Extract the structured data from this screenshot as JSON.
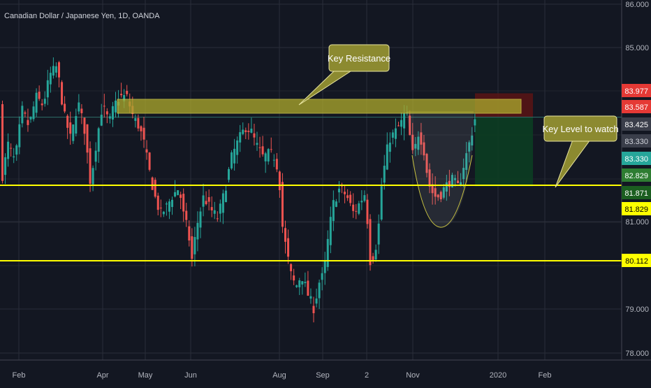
{
  "header": {
    "symbol_title": "Canadian Dollar / Japanese Yen, 1D, OANDA"
  },
  "colors": {
    "background": "#131722",
    "grid": "#2a2e39",
    "up": "#26a69a",
    "down": "#ef5350",
    "support_line": "#ffff00",
    "resistance_zone": "#a8a52c",
    "callout_fill": "#8c8a30",
    "stop_zone": "#5a1414",
    "target_zone": "#0c3d22",
    "axis_text": "#b2b5be"
  },
  "chart_data": {
    "type": "candlestick",
    "title": "Canadian Dollar / Japanese Yen, 1D, OANDA",
    "x_tick_labels": [
      "Feb",
      "Apr",
      "May",
      "Jun",
      "Aug",
      "Sep",
      "2",
      "Nov",
      "2020",
      "Feb"
    ],
    "y_tick_labels": [
      86.0,
      85.0,
      81.0,
      79.0,
      78.0
    ],
    "ylim": [
      77.95,
      86.05
    ],
    "grid": true,
    "price_points": [
      [
        0,
        81.9
      ],
      [
        10,
        82.8
      ],
      [
        20,
        82.4
      ],
      [
        30,
        83.6
      ],
      [
        40,
        83.2
      ],
      [
        50,
        83.9
      ],
      [
        60,
        83.7
      ],
      [
        70,
        84.4
      ],
      [
        80,
        84.6
      ],
      [
        90,
        83.5
      ],
      [
        100,
        82.9
      ],
      [
        110,
        83.8
      ],
      [
        120,
        83.1
      ],
      [
        128,
        81.9
      ],
      [
        135,
        82.7
      ],
      [
        145,
        83.7
      ],
      [
        155,
        83.3
      ],
      [
        162,
        83.7
      ],
      [
        170,
        83.9
      ],
      [
        180,
        83.9
      ],
      [
        190,
        83.4
      ],
      [
        198,
        83.2
      ],
      [
        205,
        82.8
      ],
      [
        212,
        82.2
      ],
      [
        220,
        81.6
      ],
      [
        228,
        81.2
      ],
      [
        235,
        81.3
      ],
      [
        245,
        81.6
      ],
      [
        255,
        81.8
      ],
      [
        262,
        81.1
      ],
      [
        268,
        80.8
      ],
      [
        273,
        80.1
      ],
      [
        280,
        80.9
      ],
      [
        290,
        81.6
      ],
      [
        300,
        81.3
      ],
      [
        310,
        81.1
      ],
      [
        320,
        81.7
      ],
      [
        330,
        82.5
      ],
      [
        340,
        82.9
      ],
      [
        350,
        83.2
      ],
      [
        358,
        83.1
      ],
      [
        365,
        82.8
      ],
      [
        375,
        82.5
      ],
      [
        385,
        82.6
      ],
      [
        392,
        82.5
      ],
      [
        398,
        82.1
      ],
      [
        402,
        81.0
      ],
      [
        408,
        80.4
      ],
      [
        415,
        79.8
      ],
      [
        422,
        79.5
      ],
      [
        430,
        79.8
      ],
      [
        440,
        79.3
      ],
      [
        448,
        79.0
      ],
      [
        455,
        79.6
      ],
      [
        462,
        79.8
      ],
      [
        468,
        80.6
      ],
      [
        475,
        81.4
      ],
      [
        485,
        81.8
      ],
      [
        495,
        81.6
      ],
      [
        505,
        81.2
      ],
      [
        515,
        81.5
      ],
      [
        522,
        81.7
      ],
      [
        528,
        80.1
      ],
      [
        535,
        80.3
      ],
      [
        540,
        80.8
      ],
      [
        545,
        81.9
      ],
      [
        555,
        82.9
      ],
      [
        565,
        83.1
      ],
      [
        573,
        83.3
      ],
      [
        580,
        83.58
      ],
      [
        585,
        83.0
      ],
      [
        590,
        82.5
      ],
      [
        598,
        83.1
      ],
      [
        605,
        82.7
      ],
      [
        612,
        81.9
      ],
      [
        620,
        81.6
      ],
      [
        628,
        81.6
      ],
      [
        635,
        81.8
      ],
      [
        645,
        82.0
      ],
      [
        655,
        81.8
      ],
      [
        662,
        82.3
      ],
      [
        670,
        82.8
      ],
      [
        676,
        83.2
      ],
      [
        681,
        83.6
      ]
    ],
    "resistance_zone": {
      "price_from": 83.45,
      "price_to": 83.58
    },
    "support_levels": [
      81.829,
      80.112
    ],
    "long_position": {
      "entry": 83.425,
      "stop": 83.977,
      "target": 81.829
    },
    "axis_badges": [
      {
        "text": "83.977",
        "bg": "#e53935",
        "fg": "#ffffff"
      },
      {
        "text": "83.587",
        "bg": "#e53935",
        "fg": "#ffffff"
      },
      {
        "text": "83.425",
        "bg": "#3a3e4a",
        "fg": "#ffffff"
      },
      {
        "text": "83.330",
        "bg": "#3a3e4a",
        "fg": "#d1d4dc"
      },
      {
        "text": "83.330",
        "bg": "#26a69a",
        "fg": "#ffffff"
      },
      {
        "text": "82.829",
        "bg": "#2e7d32",
        "fg": "#ffffff"
      },
      {
        "text": "81.871",
        "bg": "#1b5e20",
        "fg": "#ffffff"
      },
      {
        "text": "81.829",
        "bg": "#ffff00",
        "fg": "#000000"
      },
      {
        "text": "80.112",
        "bg": "#ffff00",
        "fg": "#000000"
      }
    ],
    "annotations": [
      "Key Resistance",
      "Key Level to watch"
    ]
  }
}
